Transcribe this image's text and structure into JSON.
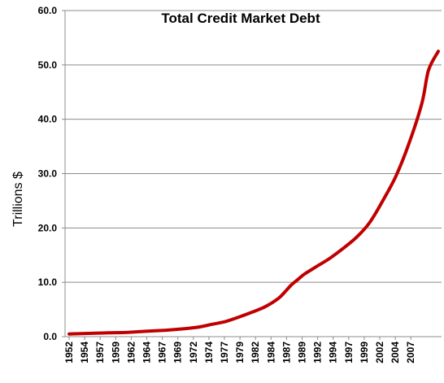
{
  "chart_data": {
    "type": "line",
    "title": "Total Credit Market Debt",
    "xlabel": "",
    "ylabel": "Trillions $",
    "ylim": [
      0,
      60
    ],
    "y_ticks": [
      "0.0",
      "10.0",
      "20.0",
      "30.0",
      "40.0",
      "50.0",
      "60.0"
    ],
    "grid": "horizontal",
    "legend": "none",
    "x_ticks": [
      "1952",
      "1954",
      "1957",
      "1959",
      "1962",
      "1964",
      "1967",
      "1969",
      "1972",
      "1974",
      "1977",
      "1979",
      "1982",
      "1984",
      "1987",
      "1989",
      "1992",
      "1994",
      "1997",
      "1999",
      "2002",
      "2004",
      "2007"
    ],
    "series": [
      {
        "color": "#c00000",
        "x": [
          1952,
          1955,
          1958,
          1961,
          1964,
          1967,
          1970,
          1972,
          1974,
          1976,
          1978,
          1980,
          1982,
          1984,
          1985,
          1986,
          1987,
          1988,
          1990,
          1992,
          1994,
          1996,
          1998,
          2000,
          2002,
          2004,
          2006,
          2007,
          2008.5
        ],
        "y": [
          0.5,
          0.6,
          0.7,
          0.8,
          1.0,
          1.2,
          1.5,
          1.8,
          2.3,
          2.8,
          3.6,
          4.5,
          5.5,
          7.0,
          8.2,
          9.5,
          10.5,
          11.5,
          13.0,
          14.5,
          16.3,
          18.3,
          21.0,
          25.0,
          29.5,
          35.5,
          43.0,
          49.0,
          52.5
        ]
      }
    ]
  }
}
